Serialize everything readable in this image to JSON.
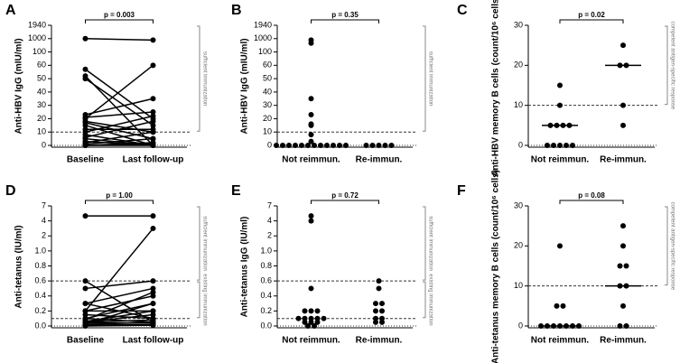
{
  "chart_data": [
    {
      "panel": "A",
      "type": "paired-dot",
      "ylabel": "Anti-HBV IgG (mIU/ml)",
      "categories": [
        "Baseline",
        "Last follow-up"
      ],
      "values": [
        [
          1000,
          57,
          52,
          50,
          23,
          21,
          20,
          18,
          17,
          15,
          12,
          10,
          8,
          6,
          5,
          3,
          2,
          1,
          0,
          0,
          0
        ],
        [
          900,
          20,
          0,
          15,
          35,
          25,
          60,
          10,
          5,
          0,
          12,
          22,
          0,
          18,
          0,
          0,
          10,
          5,
          2,
          0,
          1
        ]
      ],
      "annotation": "p = 0.003",
      "ylim": [
        0,
        1940
      ],
      "yticks": [
        0,
        10,
        20,
        30,
        40,
        50,
        60,
        100,
        1000,
        1940
      ],
      "reference_lines": [
        {
          "value": 10,
          "style": "dashed"
        },
        {
          "value": 0,
          "style": "dotted"
        }
      ],
      "brackets": [
        {
          "label": "sufficient immunization",
          "range": [
            10,
            1940
          ]
        }
      ],
      "color": "#000000"
    },
    {
      "panel": "B",
      "type": "dot",
      "ylabel": "Anti-HBV IgG (mIU/ml)",
      "categories": [
        "Not reimmun.",
        "Re-immun."
      ],
      "values": [
        [
          900,
          700,
          35,
          23,
          16,
          15,
          8,
          3,
          0,
          0,
          0,
          0,
          0,
          0,
          0,
          0,
          0,
          0,
          0,
          0
        ],
        [
          0,
          0,
          0,
          0,
          0
        ]
      ],
      "annotation": "p = 0.35",
      "ylim": [
        0,
        1940
      ],
      "yticks": [
        0,
        10,
        20,
        30,
        40,
        50,
        60,
        100,
        1000,
        1940
      ],
      "reference_lines": [
        {
          "value": 10,
          "style": "dashed"
        },
        {
          "value": 0,
          "style": "dotted"
        }
      ],
      "brackets": [
        {
          "label": "sufficient immunization",
          "range": [
            10,
            1940
          ]
        }
      ],
      "color": "#000000"
    },
    {
      "panel": "C",
      "type": "dot",
      "ylabel": "Anti-HBV memory B cells (count/10⁶ cells)",
      "categories": [
        "Not reimmun.",
        "Re-immun."
      ],
      "values": [
        [
          15,
          10,
          5,
          5,
          5,
          5,
          0,
          0,
          0,
          0,
          0
        ],
        [
          25,
          20,
          20,
          10,
          5
        ]
      ],
      "medians": [
        5,
        20
      ],
      "annotation": "p = 0.02",
      "ylim": [
        0,
        30
      ],
      "yticks": [
        0,
        10,
        20,
        30
      ],
      "reference_lines": [
        {
          "value": 10,
          "style": "dashed"
        },
        {
          "value": 0,
          "style": "dotted"
        }
      ],
      "brackets": [
        {
          "label": "competent antigen-specific response",
          "range": [
            10,
            30
          ]
        }
      ],
      "color": "#000000"
    },
    {
      "panel": "D",
      "type": "paired-dot",
      "ylabel": "Anti-tetanus (IU/ml)",
      "categories": [
        "Baseline",
        "Last follow-up"
      ],
      "values": [
        [
          5,
          0.6,
          0.5,
          0.3,
          0.3,
          0.2,
          0.2,
          0.2,
          0.15,
          0.1,
          0.1,
          0.08,
          0.06,
          0.05,
          0.05,
          0.04,
          0.03,
          0.02,
          0.01,
          0
        ],
        [
          5,
          0.05,
          0.6,
          0.1,
          0.5,
          3,
          0.4,
          0.2,
          0.1,
          0.3,
          0.05,
          0.45,
          0.2,
          0.15,
          0.08,
          0.04,
          0.3,
          0.05,
          0.02,
          0.01
        ]
      ],
      "annotation": "p = 1.00",
      "ylim": [
        0,
        7
      ],
      "yticks": [
        {
          "value": 0,
          "label": "0.0"
        },
        0.2,
        0.4,
        0.6,
        0.8,
        {
          "value": 1,
          "label": "1.0"
        },
        2,
        4,
        7
      ],
      "reference_lines": [
        {
          "value": 0.6,
          "style": "dashed"
        },
        {
          "value": 0.1,
          "style": "dashed"
        },
        {
          "value": 0,
          "style": "dotted"
        }
      ],
      "brackets": [
        {
          "label": "sufficient immunization",
          "range": [
            0.6,
            7
          ]
        },
        {
          "label": "existing immunization",
          "range": [
            0.1,
            0.6
          ]
        }
      ],
      "color": "#000000"
    },
    {
      "panel": "E",
      "type": "dot",
      "ylabel": "Anti-tetanus IgG (IU/ml)",
      "categories": [
        "Not reimmun.",
        "Re-immun."
      ],
      "values": [
        [
          5,
          4,
          0.5,
          0.2,
          0.2,
          0.2,
          0.1,
          0.1,
          0.1,
          0.1,
          0.1,
          0.05,
          0.05,
          0.05,
          0,
          0
        ],
        [
          0.6,
          0.5,
          0.3,
          0.3,
          0.2,
          0.2,
          0.1,
          0.1,
          0.05,
          0.05
        ]
      ],
      "annotation": "p = 0.72",
      "ylim": [
        0,
        7
      ],
      "yticks": [
        {
          "value": 0,
          "label": "0.0"
        },
        0.2,
        0.4,
        0.6,
        0.8,
        {
          "value": 1,
          "label": "1.0"
        },
        2,
        4,
        7
      ],
      "reference_lines": [
        {
          "value": 0.6,
          "style": "dashed"
        },
        {
          "value": 0.1,
          "style": "dashed"
        },
        {
          "value": 0,
          "style": "dotted"
        }
      ],
      "brackets": [
        {
          "label": "sufficient immunization",
          "range": [
            0.6,
            7
          ]
        },
        {
          "label": "existing immunization",
          "range": [
            0.1,
            0.6
          ]
        }
      ],
      "color": "#000000"
    },
    {
      "panel": "F",
      "type": "dot",
      "ylabel": "Anti-tetanus memory B cells (count/10⁶ cells)",
      "categories": [
        "Not reimmun.",
        "Re-immun."
      ],
      "values": [
        [
          20,
          5,
          5,
          0,
          0,
          0,
          0,
          0,
          0,
          0
        ],
        [
          25,
          20,
          15,
          15,
          10,
          10,
          5,
          0,
          0
        ]
      ],
      "medians": [
        0,
        10
      ],
      "annotation": "p = 0.08",
      "ylim": [
        0,
        30
      ],
      "yticks": [
        0,
        10,
        20,
        30
      ],
      "reference_lines": [
        {
          "value": 10,
          "style": "dashed"
        },
        {
          "value": 0,
          "style": "dotted"
        }
      ],
      "brackets": [
        {
          "label": "competent antigen-specific response",
          "range": [
            10,
            30
          ]
        }
      ],
      "color": "#000000"
    }
  ]
}
